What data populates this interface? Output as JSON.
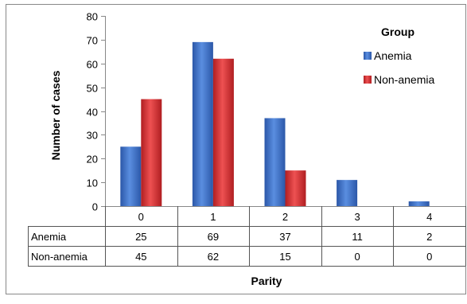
{
  "chart_data": {
    "type": "bar",
    "title": "",
    "xlabel": "Parity",
    "ylabel": "Number of cases",
    "categories": [
      "0",
      "1",
      "2",
      "3",
      "4"
    ],
    "ylim": [
      0,
      80
    ],
    "yticks": [
      "0",
      "10",
      "20",
      "30",
      "40",
      "50",
      "60",
      "70",
      "80"
    ],
    "grid": false,
    "legend": {
      "title": "Group",
      "position": "right"
    },
    "series": [
      {
        "name": "Anemia",
        "values": [
          25,
          69,
          37,
          11,
          2
        ],
        "color": "#3a6fcc"
      },
      {
        "name": "Non-anemia",
        "values": [
          45,
          62,
          15,
          0,
          0
        ],
        "color": "#d9282a"
      }
    ],
    "data_table": {
      "rows": [
        {
          "label": "Anemia",
          "values": [
            "25",
            "69",
            "37",
            "11",
            "2"
          ]
        },
        {
          "label": "Non-anemia",
          "values": [
            "45",
            "62",
            "15",
            "0",
            "0"
          ]
        }
      ]
    }
  }
}
